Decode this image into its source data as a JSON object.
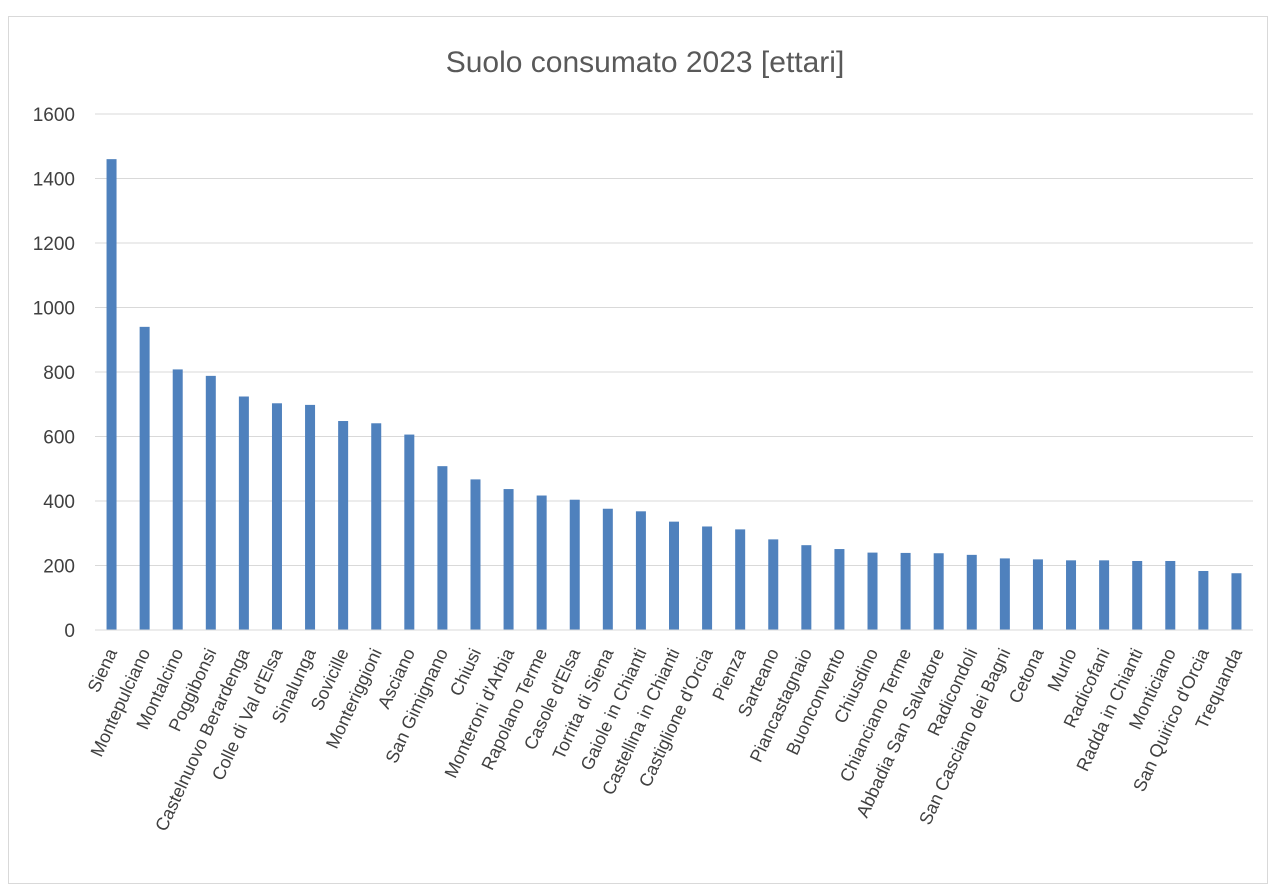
{
  "chart_data": {
    "type": "bar",
    "title": "Suolo consumato 2023 [ettari]",
    "xlabel": "",
    "ylabel": "",
    "ylim": [
      0,
      1600
    ],
    "yticks": [
      0,
      200,
      400,
      600,
      800,
      1000,
      1200,
      1400,
      1600
    ],
    "grid": true,
    "bar_color": "#4f81bd",
    "categories": [
      "Siena",
      "Montepulciano",
      "Montalcino",
      "Poggibonsi",
      "Castelnuovo Berardenga",
      "Colle di Val d'Elsa",
      "Sinalunga",
      "Sovicille",
      "Monteriggioni",
      "Asciano",
      "San Gimignano",
      "Chiusi",
      "Monteroni d'Arbia",
      "Rapolano Terme",
      "Casole d'Elsa",
      "Torrita di Siena",
      "Gaiole in Chianti",
      "Castellina in Chianti",
      "Castiglione d'Orcia",
      "Pienza",
      "Sarteano",
      "Piancastagnaio",
      "Buonconvento",
      "Chiusdino",
      "Chianciano Terme",
      "Abbadia San Salvatore",
      "Radicondoli",
      "San Casciano dei Bagni",
      "Cetona",
      "Murlo",
      "Radicofani",
      "Radda in Chianti",
      "Monticiano",
      "San Quirico d'Orcia",
      "Trequanda"
    ],
    "values": [
      1460,
      940,
      808,
      788,
      724,
      703,
      698,
      648,
      641,
      606,
      508,
      467,
      437,
      417,
      404,
      376,
      368,
      336,
      321,
      312,
      281,
      263,
      251,
      240,
      239,
      238,
      233,
      222,
      219,
      216,
      216,
      214,
      214,
      183,
      176
    ]
  }
}
